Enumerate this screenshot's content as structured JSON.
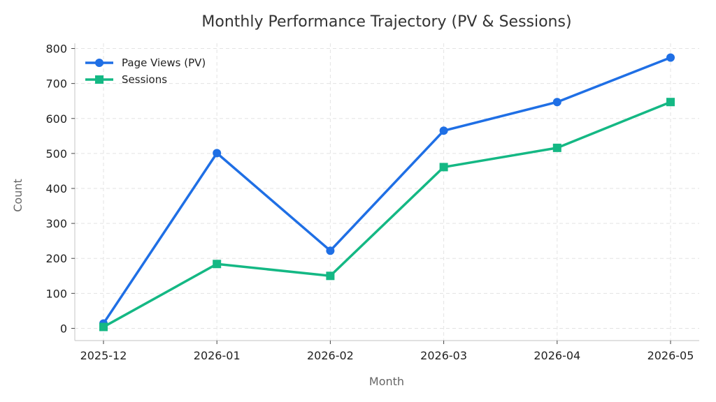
{
  "chart_data": {
    "type": "line",
    "title": "Monthly Performance Trajectory (PV & Sessions)",
    "xlabel": "Month",
    "ylabel": "Count",
    "categories": [
      "2025-12",
      "2026-01",
      "2026-02",
      "2026-03",
      "2026-04",
      "2026-05"
    ],
    "ylim": [
      -35,
      815
    ],
    "yticks": [
      0,
      100,
      200,
      300,
      400,
      500,
      600,
      700,
      800
    ],
    "grid": true,
    "legend_position": "top-left",
    "series": [
      {
        "name": "Page Views (PV)",
        "values": [
          14,
          501,
          222,
          565,
          647,
          774
        ],
        "color": "#1f6fe5",
        "marker": "circle"
      },
      {
        "name": "Sessions",
        "values": [
          4,
          184,
          150,
          461,
          516,
          647
        ],
        "color": "#14b884",
        "marker": "square"
      }
    ]
  }
}
